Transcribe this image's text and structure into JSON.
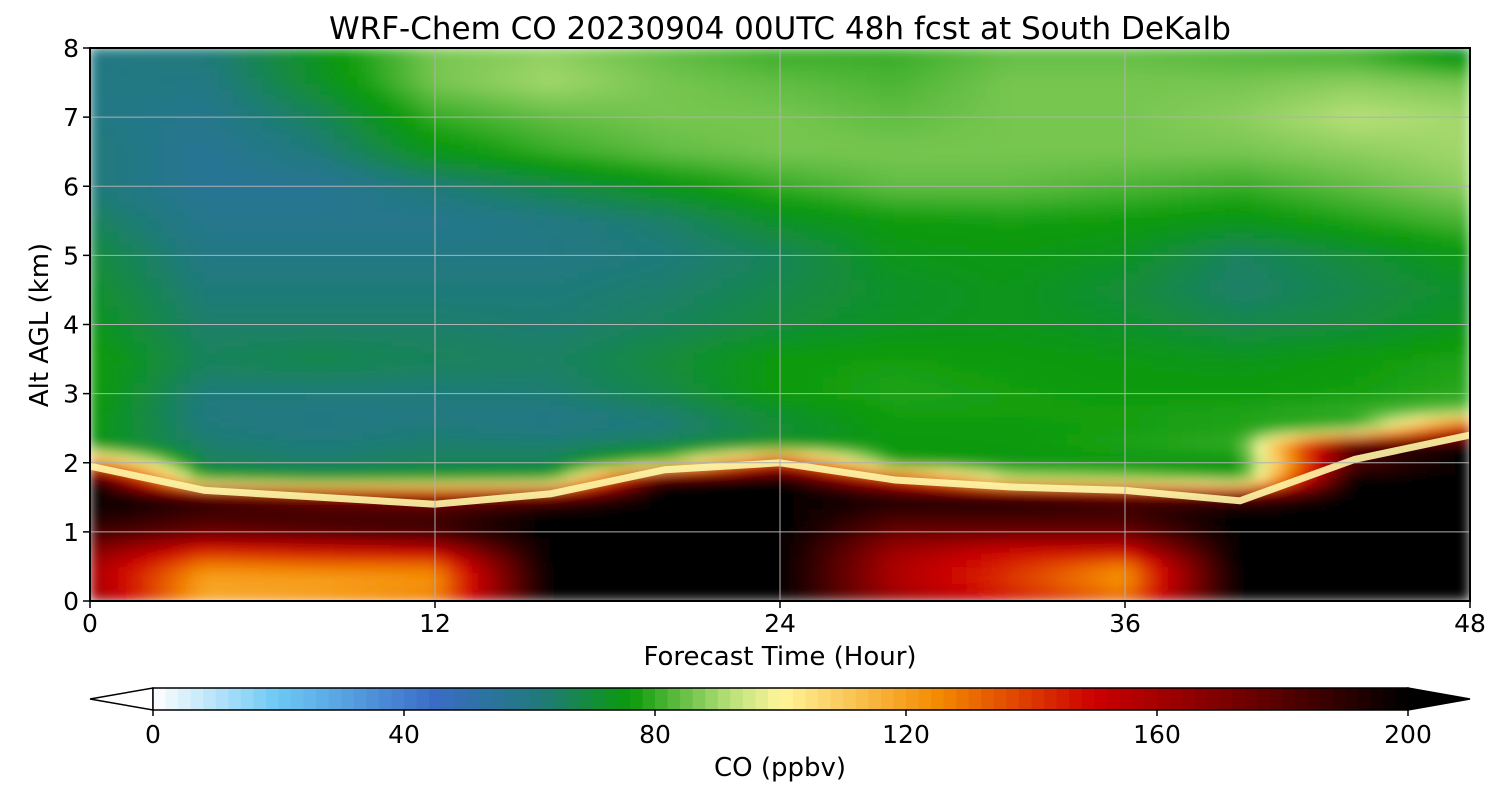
{
  "chart_data": {
    "type": "heatmap",
    "title": "WRF-Chem CO  20230904 00UTC 48h fcst at South DeKalb",
    "xlabel": "Forecast Time (Hour)",
    "ylabel": "Alt AGL (km)",
    "xlim": [
      0,
      48
    ],
    "ylim": [
      0,
      8
    ],
    "xticks": [
      0,
      12,
      24,
      36,
      48
    ],
    "yticks": [
      0,
      1,
      2,
      3,
      4,
      5,
      6,
      7,
      8
    ],
    "grid": true,
    "colorbar": {
      "label": "CO  (ppbv)",
      "range": [
        0,
        200
      ],
      "ticks": [
        0,
        40,
        80,
        120,
        160,
        200
      ],
      "extend": "both",
      "stops": [
        {
          "v": 0,
          "c": "#ffffff"
        },
        {
          "v": 20,
          "c": "#6cc8f4"
        },
        {
          "v": 45,
          "c": "#3a6cc6"
        },
        {
          "v": 62,
          "c": "#1f7a7a"
        },
        {
          "v": 76,
          "c": "#0a9a0a"
        },
        {
          "v": 92,
          "c": "#b8e07a"
        },
        {
          "v": 100,
          "c": "#fff59a"
        },
        {
          "v": 125,
          "c": "#f48a00"
        },
        {
          "v": 150,
          "c": "#cc0000"
        },
        {
          "v": 175,
          "c": "#6b0000"
        },
        {
          "v": 200,
          "c": "#000000"
        }
      ]
    },
    "x": [
      0,
      4,
      8,
      12,
      16,
      20,
      24,
      28,
      32,
      36,
      40,
      44,
      48
    ],
    "y": [
      0,
      0.25,
      0.5,
      0.75,
      1.0,
      1.25,
      1.5,
      1.75,
      2.0,
      2.25,
      2.5,
      2.75,
      3.0,
      3.5,
      4.0,
      4.5,
      5.0,
      5.5,
      6.0,
      6.5,
      7.0,
      7.5,
      8.0
    ],
    "boundary_layer_top_km": [
      1.95,
      1.6,
      1.5,
      1.4,
      1.55,
      1.9,
      2.0,
      1.75,
      1.65,
      1.6,
      1.45,
      2.05,
      2.4
    ],
    "values_by_height": [
      [
        165,
        120,
        125,
        130,
        200,
        200,
        200,
        165,
        150,
        135,
        200,
        200,
        200
      ],
      [
        160,
        118,
        118,
        122,
        200,
        200,
        200,
        158,
        140,
        122,
        200,
        200,
        200
      ],
      [
        160,
        125,
        128,
        128,
        200,
        200,
        200,
        158,
        142,
        125,
        200,
        200,
        200
      ],
      [
        170,
        145,
        150,
        155,
        200,
        200,
        200,
        162,
        150,
        150,
        200,
        200,
        200
      ],
      [
        185,
        175,
        180,
        185,
        200,
        200,
        200,
        175,
        175,
        175,
        200,
        200,
        200
      ],
      [
        195,
        185,
        185,
        185,
        200,
        200,
        200,
        185,
        185,
        185,
        200,
        200,
        200
      ],
      [
        200,
        190,
        175,
        170,
        180,
        200,
        200,
        195,
        195,
        185,
        185,
        200,
        200
      ],
      [
        200,
        80,
        75,
        78,
        80,
        195,
        200,
        150,
        95,
        90,
        80,
        200,
        200
      ],
      [
        130,
        66,
        64,
        66,
        66,
        88,
        150,
        76,
        74,
        74,
        74,
        180,
        200
      ],
      [
        74,
        64,
        62,
        64,
        64,
        68,
        74,
        75,
        76,
        78,
        80,
        190,
        200
      ],
      [
        76,
        62,
        60,
        62,
        60,
        62,
        70,
        76,
        76,
        77,
        78,
        79,
        150
      ],
      [
        76,
        61,
        60,
        60,
        60,
        64,
        72,
        77,
        77,
        77,
        78,
        80,
        85
      ],
      [
        77,
        62,
        62,
        62,
        63,
        68,
        76,
        78,
        77,
        76,
        76,
        77,
        79
      ],
      [
        77,
        66,
        68,
        66,
        65,
        70,
        76,
        77,
        76,
        75,
        74,
        76,
        78
      ],
      [
        74,
        64,
        64,
        64,
        63,
        66,
        70,
        73,
        74,
        72,
        68,
        70,
        74
      ],
      [
        72,
        62,
        62,
        62,
        62,
        64,
        68,
        72,
        74,
        70,
        64,
        68,
        72
      ],
      [
        70,
        60,
        60,
        60,
        60,
        62,
        66,
        74,
        75,
        73,
        65,
        70,
        75
      ],
      [
        66,
        58,
        58,
        58,
        60,
        64,
        72,
        76,
        77,
        76,
        74,
        78,
        82
      ],
      [
        62,
        56,
        56,
        62,
        68,
        74,
        80,
        84,
        84,
        82,
        80,
        84,
        88
      ],
      [
        62,
        56,
        62,
        74,
        80,
        84,
        86,
        86,
        86,
        86,
        86,
        88,
        90
      ],
      [
        60,
        58,
        66,
        80,
        84,
        86,
        86,
        84,
        86,
        86,
        88,
        92,
        90
      ],
      [
        60,
        60,
        72,
        86,
        90,
        86,
        84,
        82,
        86,
        86,
        86,
        88,
        86
      ],
      [
        60,
        62,
        74,
        86,
        88,
        84,
        80,
        80,
        84,
        84,
        82,
        80,
        70
      ]
    ]
  }
}
